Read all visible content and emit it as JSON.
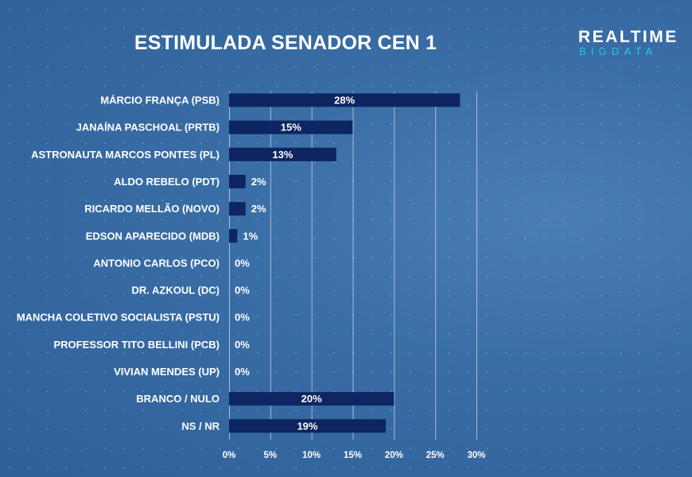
{
  "chart_data": {
    "type": "bar",
    "orientation": "horizontal",
    "title": "ESTIMULADA SENADOR CEN 1",
    "categories": [
      "MÁRCIO FRANÇA (PSB)",
      "JANAÍNA PASCHOAL (PRTB)",
      "ASTRONAUTA MARCOS PONTES (PL)",
      "ALDO REBELO (PDT)",
      "RICARDO MELLÃO (NOVO)",
      "EDSON APARECIDO (MDB)",
      "ANTONIO CARLOS (PCO)",
      "DR. AZKOUL (DC)",
      "MANCHA COLETIVO SOCIALISTA (PSTU)",
      "PROFESSOR TITO BELLINI (PCB)",
      "VIVIAN MENDES (UP)",
      "BRANCO / NULO",
      "NS / NR"
    ],
    "values": [
      28,
      15,
      13,
      2,
      2,
      1,
      0,
      0,
      0,
      0,
      0,
      20,
      19
    ],
    "value_labels": [
      "28%",
      "15%",
      "13%",
      "2%",
      "2%",
      "1%",
      "0%",
      "0%",
      "0%",
      "0%",
      "0%",
      "20%",
      "19%"
    ],
    "xlim": [
      0,
      30
    ],
    "x_ticks": [
      0,
      5,
      10,
      15,
      20,
      25,
      30
    ],
    "x_tick_labels": [
      "0%",
      "5%",
      "10%",
      "15%",
      "20%",
      "25%",
      "30%"
    ],
    "grid": "vertical",
    "colors": {
      "bar": "#0d2560",
      "background": "#3a6ea6"
    }
  },
  "brand": {
    "top": "REALTIME",
    "bottom": "BIGDATA",
    "accent": "#27c7e8"
  }
}
